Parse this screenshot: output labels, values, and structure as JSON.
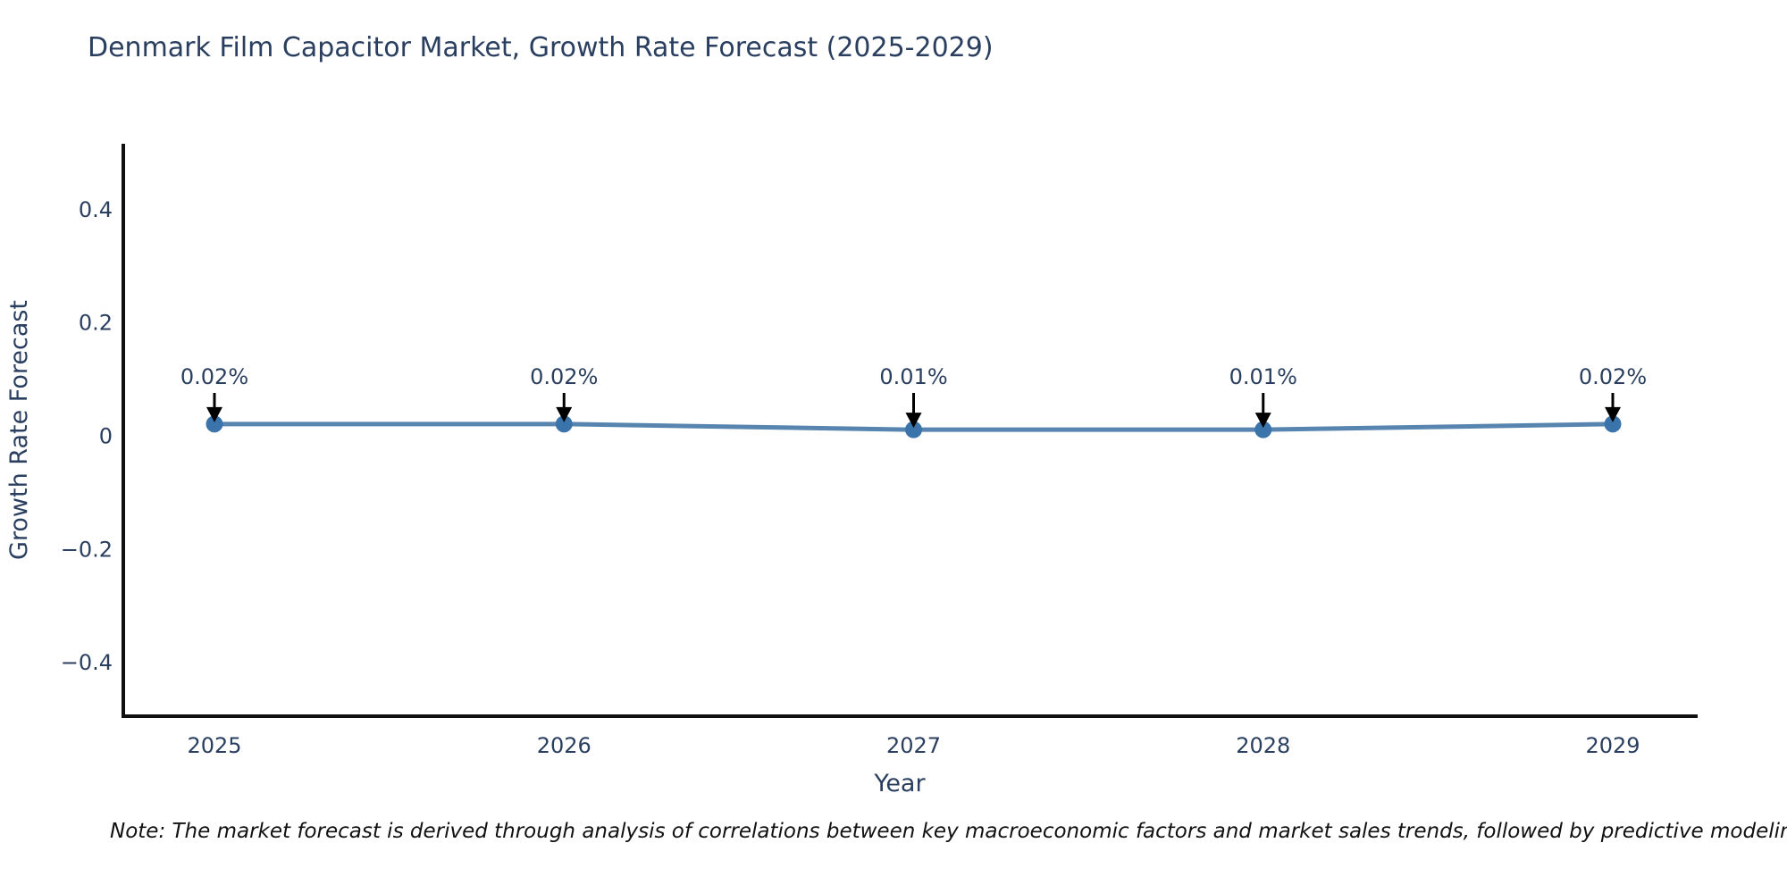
{
  "page": {
    "title": "Denmark Film Capacitor Market, Growth Rate Forecast (2025-2029)",
    "note": "Note: The market forecast is derived through analysis of correlations between key macroeconomic factors and market sales trends, followed by predictive modeling to project future sa"
  },
  "chart_data": {
    "type": "line",
    "title": "Denmark Film Capacitor Market, Growth Rate Forecast (2025-2029)",
    "xlabel": "Year",
    "ylabel": "Growth Rate Forecast",
    "categories": [
      "2025",
      "2026",
      "2027",
      "2028",
      "2029"
    ],
    "values": [
      0.02,
      0.02,
      0.01,
      0.01,
      0.02
    ],
    "point_labels": [
      "0.02%",
      "0.02%",
      "0.01%",
      "0.01%",
      "0.02%"
    ],
    "yticks": [
      0.4,
      0.2,
      0,
      -0.2,
      -0.4
    ],
    "ytick_labels": [
      "0.4",
      "0.2",
      "0",
      "−0.2",
      "−0.4"
    ],
    "ylim": [
      -0.496,
      0.515
    ],
    "grid": false,
    "legend": false,
    "annotations_have_arrows": true,
    "colors": {
      "line": "#5785b0",
      "marker": "#3a74ab",
      "axis": "#101010",
      "text": "#2a3f5f",
      "arrow": "#000000"
    }
  }
}
